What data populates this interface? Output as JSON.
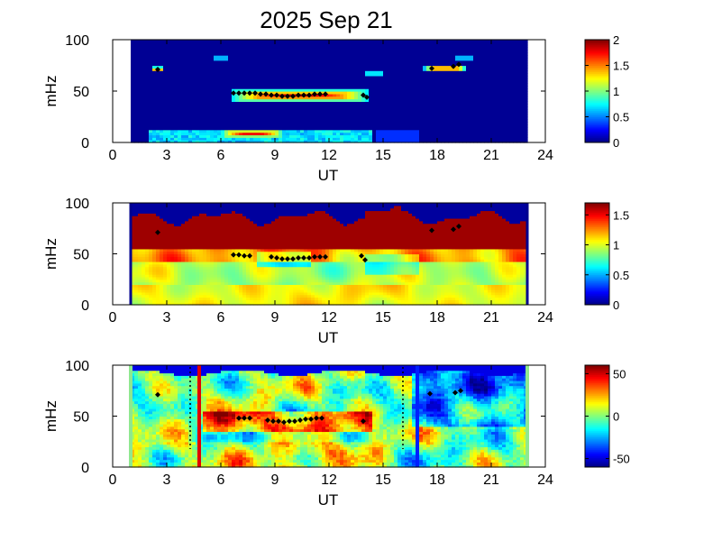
{
  "title": "2025 Sep 21",
  "chart_data": [
    {
      "type": "heatmap",
      "xlabel": "UT",
      "ylabel": "mHz",
      "xlim": [
        0,
        24
      ],
      "ylim": [
        0,
        100
      ],
      "xticks": [
        "0",
        "3",
        "6",
        "9",
        "12",
        "15",
        "18",
        "21",
        "24"
      ],
      "yticks": [
        "0",
        "50",
        "100"
      ],
      "colorbar": {
        "range": [
          0,
          2
        ],
        "ticks": [
          "0",
          "0.5",
          "1",
          "1.5",
          "2"
        ]
      },
      "data_window": [
        1,
        23
      ],
      "bands": [
        {
          "x0": 6.6,
          "x1": 14.2,
          "y0": 40,
          "y1": 52,
          "value": 1.9
        },
        {
          "x0": 6.0,
          "x1": 9.5,
          "y0": 5,
          "y1": 13,
          "value": 1.85
        },
        {
          "x0": 2.0,
          "x1": 14.0,
          "y0": 0,
          "y1": 12,
          "value": 0.7
        },
        {
          "x0": 2.2,
          "x1": 2.8,
          "y0": 69,
          "y1": 74,
          "value": 1.9
        },
        {
          "x0": 17.3,
          "x1": 19.6,
          "y0": 69,
          "y1": 76,
          "value": 1.8
        }
      ],
      "markers": [
        {
          "x": 2.5,
          "y": 71
        },
        {
          "x": 6.7,
          "y": 48
        },
        {
          "x": 7.0,
          "y": 48
        },
        {
          "x": 7.3,
          "y": 48
        },
        {
          "x": 7.6,
          "y": 48
        },
        {
          "x": 7.9,
          "y": 48
        },
        {
          "x": 8.2,
          "y": 47
        },
        {
          "x": 8.5,
          "y": 47
        },
        {
          "x": 8.8,
          "y": 46
        },
        {
          "x": 9.1,
          "y": 46
        },
        {
          "x": 9.4,
          "y": 45
        },
        {
          "x": 9.7,
          "y": 45
        },
        {
          "x": 10.0,
          "y": 45
        },
        {
          "x": 10.3,
          "y": 46
        },
        {
          "x": 10.6,
          "y": 46
        },
        {
          "x": 10.9,
          "y": 46
        },
        {
          "x": 11.2,
          "y": 47
        },
        {
          "x": 11.5,
          "y": 47
        },
        {
          "x": 11.8,
          "y": 47
        },
        {
          "x": 13.9,
          "y": 46
        },
        {
          "x": 14.1,
          "y": 44
        },
        {
          "x": 17.7,
          "y": 72
        },
        {
          "x": 18.9,
          "y": 74
        },
        {
          "x": 19.2,
          "y": 76
        }
      ]
    },
    {
      "type": "heatmap",
      "xlabel": "UT",
      "ylabel": "mHz",
      "xlim": [
        0,
        24
      ],
      "ylim": [
        0,
        100
      ],
      "xticks": [
        "0",
        "3",
        "6",
        "9",
        "12",
        "15",
        "18",
        "21",
        "24"
      ],
      "yticks": [
        "0",
        "50",
        "100"
      ],
      "colorbar": {
        "range": [
          0,
          1.7
        ],
        "ticks": [
          "0",
          "0.5",
          "1",
          "1.5"
        ]
      },
      "data_window": [
        1,
        23
      ],
      "markers": [
        {
          "x": 2.5,
          "y": 71
        },
        {
          "x": 6.7,
          "y": 49
        },
        {
          "x": 7.0,
          "y": 49
        },
        {
          "x": 7.3,
          "y": 48
        },
        {
          "x": 7.6,
          "y": 48
        },
        {
          "x": 8.8,
          "y": 47
        },
        {
          "x": 9.1,
          "y": 46
        },
        {
          "x": 9.4,
          "y": 45
        },
        {
          "x": 9.7,
          "y": 45
        },
        {
          "x": 10.0,
          "y": 45
        },
        {
          "x": 10.3,
          "y": 46
        },
        {
          "x": 10.6,
          "y": 46
        },
        {
          "x": 10.9,
          "y": 46
        },
        {
          "x": 11.2,
          "y": 47
        },
        {
          "x": 11.5,
          "y": 47
        },
        {
          "x": 11.8,
          "y": 47
        },
        {
          "x": 13.8,
          "y": 48
        },
        {
          "x": 14.0,
          "y": 44
        },
        {
          "x": 17.7,
          "y": 73
        },
        {
          "x": 18.9,
          "y": 74
        },
        {
          "x": 19.2,
          "y": 77
        }
      ]
    },
    {
      "type": "heatmap",
      "xlabel": "UT",
      "ylabel": "mHz",
      "xlim": [
        0,
        24
      ],
      "ylim": [
        0,
        100
      ],
      "xticks": [
        "0",
        "3",
        "6",
        "9",
        "12",
        "15",
        "18",
        "21",
        "24"
      ],
      "yticks": [
        "0",
        "50",
        "100"
      ],
      "colorbar": {
        "range": [
          -60,
          60
        ],
        "ticks": [
          "50",
          "0",
          "-50"
        ]
      },
      "data_window": [
        1,
        23
      ],
      "vlines": [
        {
          "x": 4.8,
          "color": "#e00000"
        },
        {
          "x": 16.9,
          "color": "#0020ff"
        }
      ],
      "dotted_lines": [
        4.3,
        16.1
      ],
      "markers": [
        {
          "x": 2.5,
          "y": 71
        },
        {
          "x": 7.0,
          "y": 48
        },
        {
          "x": 7.3,
          "y": 48
        },
        {
          "x": 7.6,
          "y": 48
        },
        {
          "x": 8.6,
          "y": 46
        },
        {
          "x": 8.9,
          "y": 45
        },
        {
          "x": 9.2,
          "y": 45
        },
        {
          "x": 9.5,
          "y": 44
        },
        {
          "x": 9.8,
          "y": 45
        },
        {
          "x": 10.1,
          "y": 45
        },
        {
          "x": 10.4,
          "y": 46
        },
        {
          "x": 10.7,
          "y": 47
        },
        {
          "x": 11.0,
          "y": 47
        },
        {
          "x": 11.3,
          "y": 48
        },
        {
          "x": 11.6,
          "y": 48
        },
        {
          "x": 13.9,
          "y": 45
        },
        {
          "x": 17.6,
          "y": 72
        },
        {
          "x": 19.0,
          "y": 73
        },
        {
          "x": 19.3,
          "y": 75
        }
      ]
    }
  ]
}
